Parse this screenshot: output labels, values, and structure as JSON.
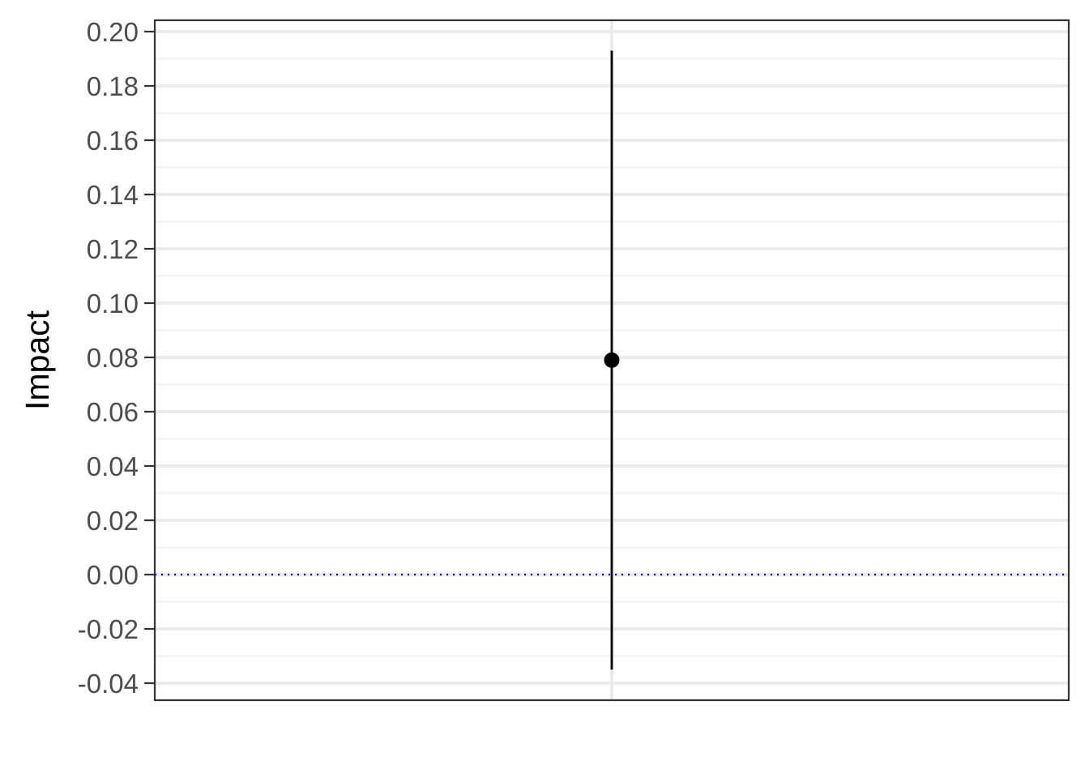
{
  "chart_data": {
    "type": "scatter",
    "title": "",
    "xlabel": "",
    "ylabel": "Impact",
    "ylim": [
      -0.046,
      0.204
    ],
    "y_ticks": [
      -0.04,
      -0.02,
      0.0,
      0.02,
      0.04,
      0.06,
      0.08,
      0.1,
      0.12,
      0.14,
      0.16,
      0.18,
      0.2
    ],
    "y_tick_labels": [
      "-0.04",
      "-0.02",
      "0.00",
      "0.02",
      "0.04",
      "0.06",
      "0.08",
      "0.10",
      "0.12",
      "0.14",
      "0.16",
      "0.18",
      "0.20"
    ],
    "points": [
      {
        "y": 0.079,
        "lower": -0.035,
        "upper": 0.193
      }
    ],
    "reference_line": {
      "y": 0.0,
      "style": "dotted",
      "color": "#0000ff"
    },
    "grid": true,
    "colors": {
      "point": "#000000",
      "grid_major": "#ebebeb",
      "grid_minor": "#f2f2f2",
      "panel_border": "#333333",
      "reference": "#0000ff"
    }
  }
}
